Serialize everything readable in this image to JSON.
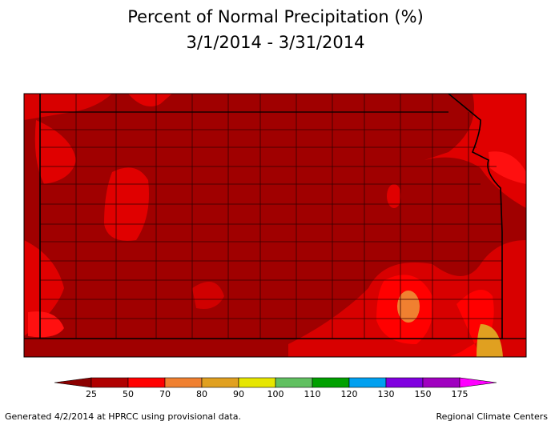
{
  "header": {
    "title": "Percent of Normal Precipitation (%)",
    "subtitle": "3/1/2014 - 3/31/2014"
  },
  "legend": {
    "labels": [
      25,
      50,
      70,
      80,
      90,
      100,
      110,
      120,
      130,
      150,
      175
    ],
    "colors": [
      "#8b0000",
      "#b00000",
      "#ff0000",
      "#f08030",
      "#e0a020",
      "#e6e600",
      "#60c060",
      "#00a000",
      "#00a0f0",
      "#8000e0",
      "#a000c0",
      "#ff00ff"
    ]
  },
  "footer": {
    "left": "Generated 4/2/2014 at HPRCC using provisional data.",
    "right": "Regional Climate Centers"
  }
}
